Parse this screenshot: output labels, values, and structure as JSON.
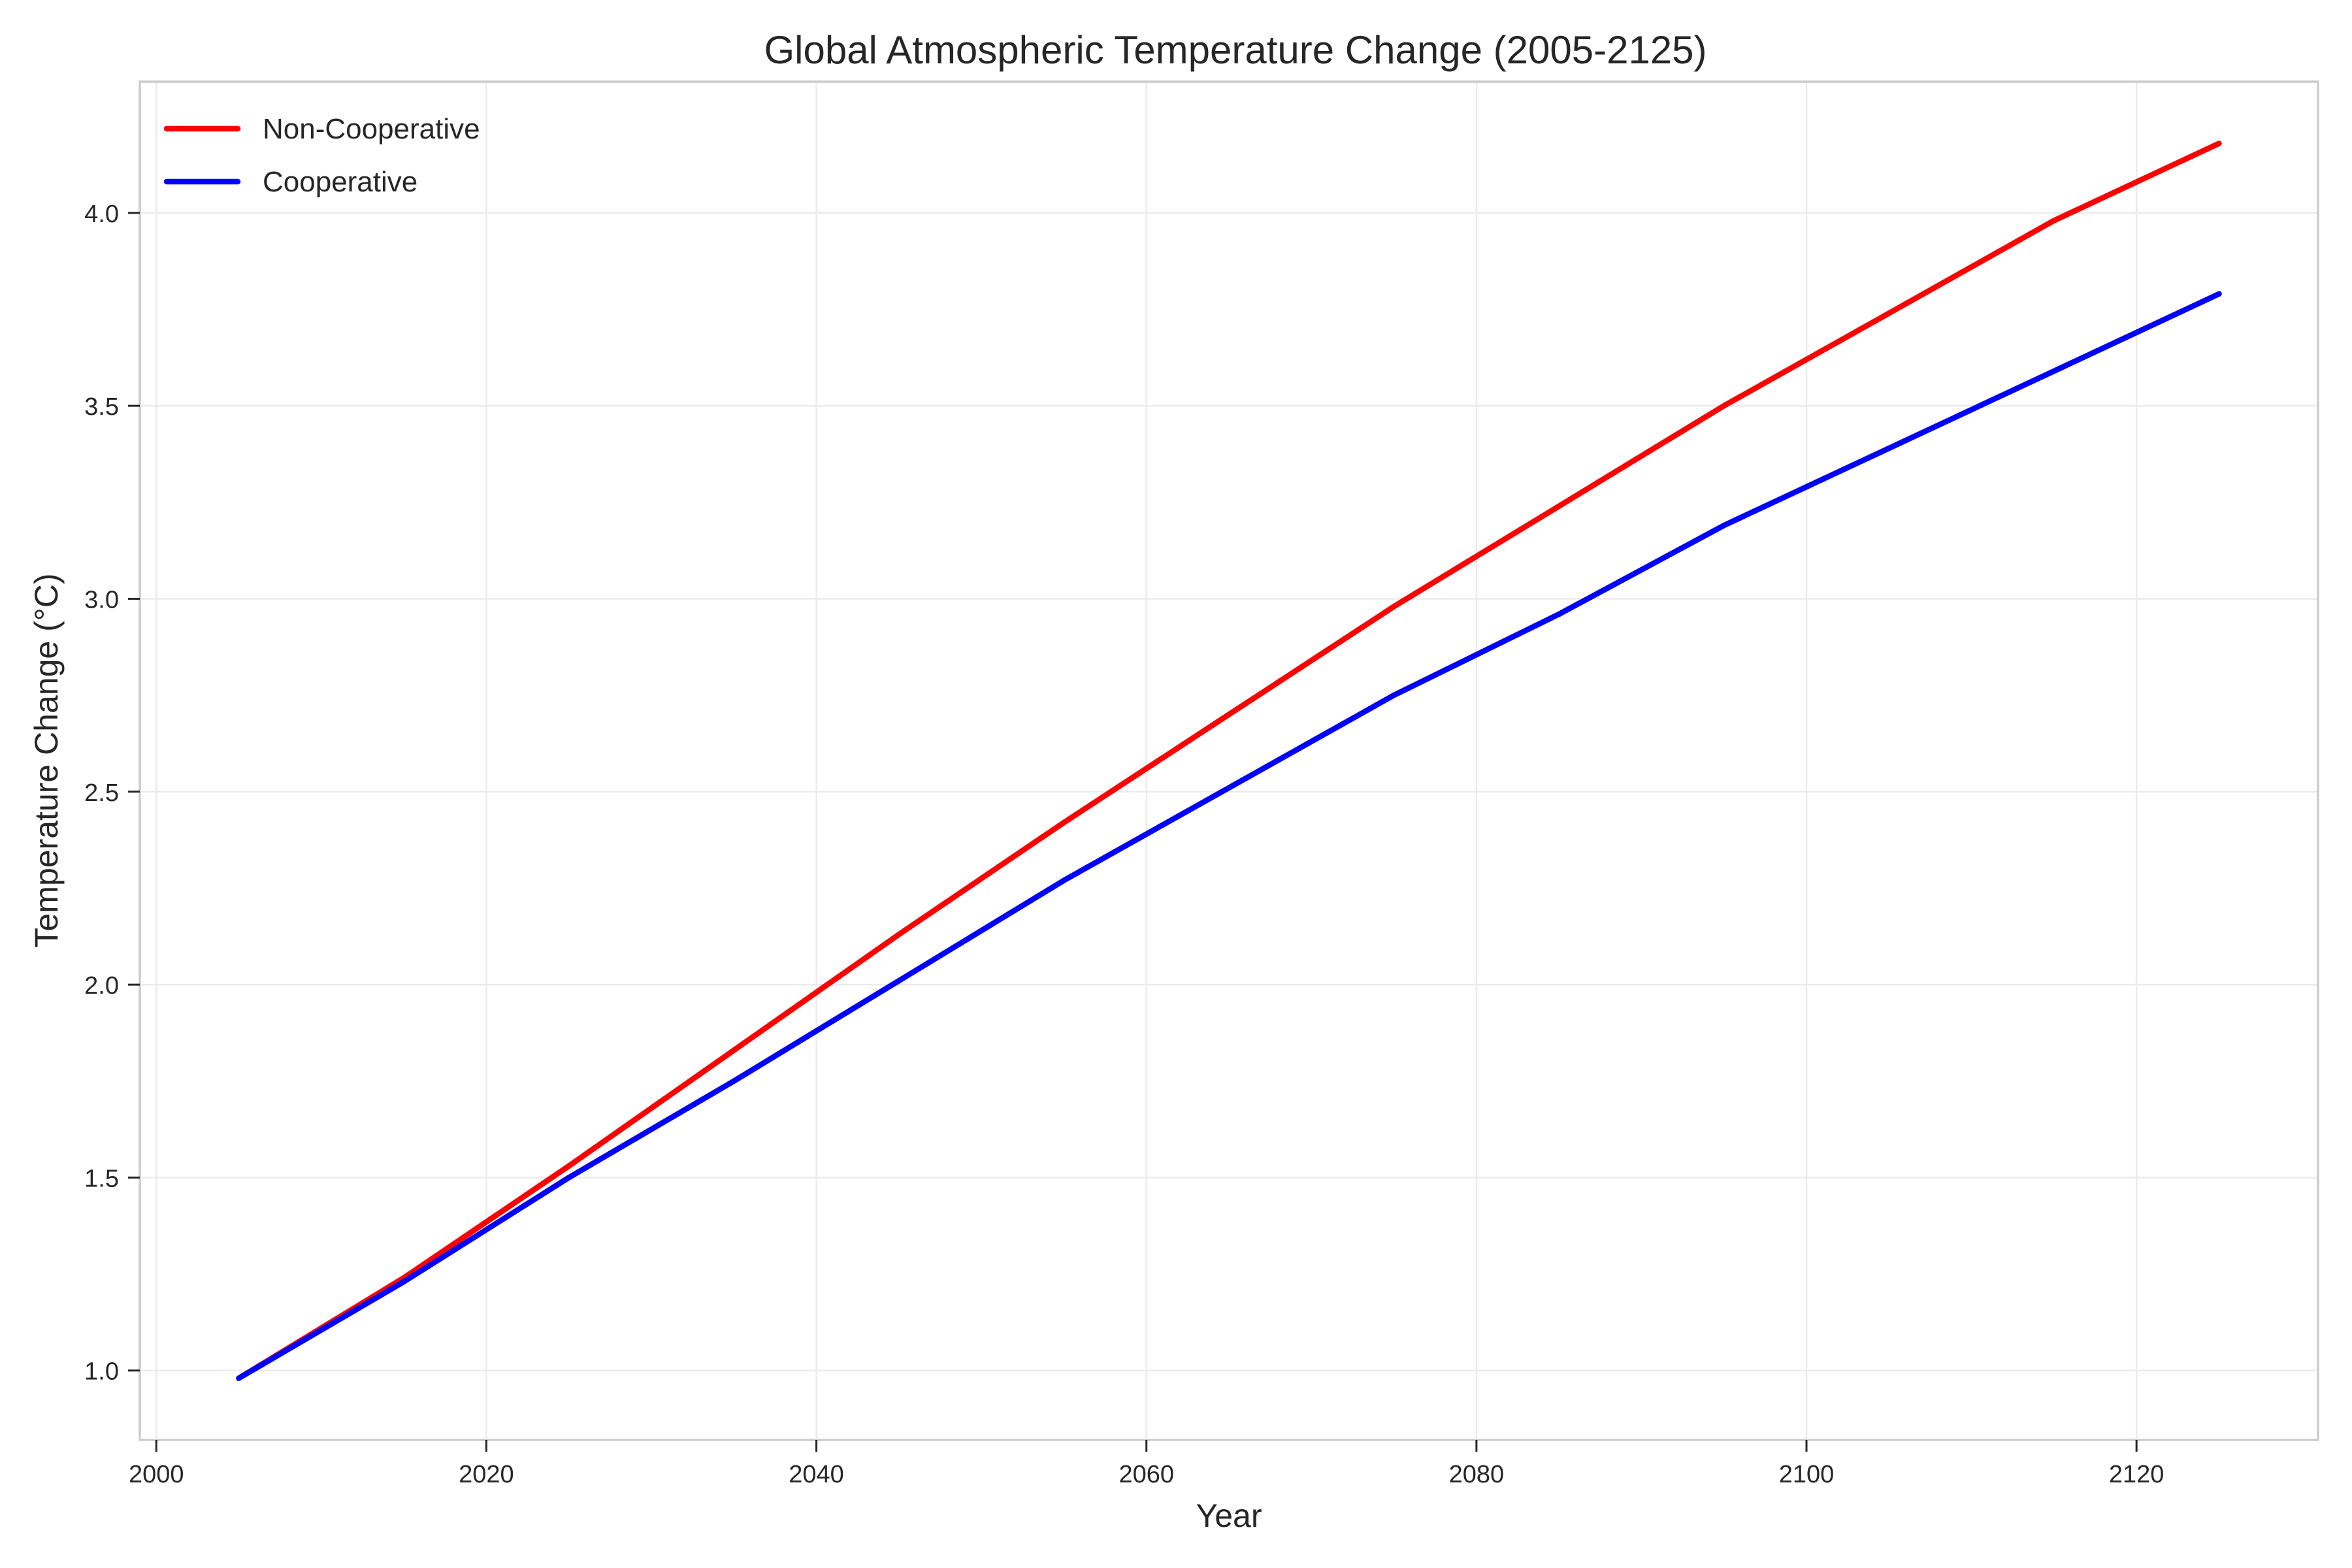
{
  "chart_data": {
    "type": "line",
    "title": "Global Atmospheric Temperature Change (2005-2125)",
    "xlabel": "Year",
    "ylabel": "Temperature Change (°C)",
    "x": [
      2005,
      2015,
      2025,
      2035,
      2045,
      2055,
      2065,
      2075,
      2085,
      2095,
      2105,
      2115,
      2125
    ],
    "series": [
      {
        "name": "Non-Cooperative",
        "color": "#ff0000",
        "values": [
          0.98,
          1.24,
          1.53,
          1.83,
          2.13,
          2.42,
          2.7,
          2.98,
          3.24,
          3.5,
          3.74,
          3.98,
          4.18
        ]
      },
      {
        "name": "Cooperative",
        "color": "#0000ff",
        "values": [
          0.98,
          1.23,
          1.5,
          1.75,
          2.01,
          2.27,
          2.51,
          2.75,
          2.96,
          3.19,
          3.39,
          3.59,
          3.79
        ]
      }
    ],
    "xlim": [
      1999,
      2131
    ],
    "ylim": [
      0.82,
      4.34
    ],
    "xticks": [
      2000,
      2020,
      2040,
      2060,
      2080,
      2100,
      2120
    ],
    "xtick_labels": [
      "2000",
      "2020",
      "2040",
      "2060",
      "2080",
      "2100",
      "2120"
    ],
    "yticks": [
      1.0,
      1.5,
      2.0,
      2.5,
      3.0,
      3.5,
      4.0
    ],
    "ytick_labels": [
      "1.0",
      "1.5",
      "2.0",
      "2.5",
      "3.0",
      "3.5",
      "4.0"
    ],
    "grid": true,
    "legend_position": "top-left"
  }
}
